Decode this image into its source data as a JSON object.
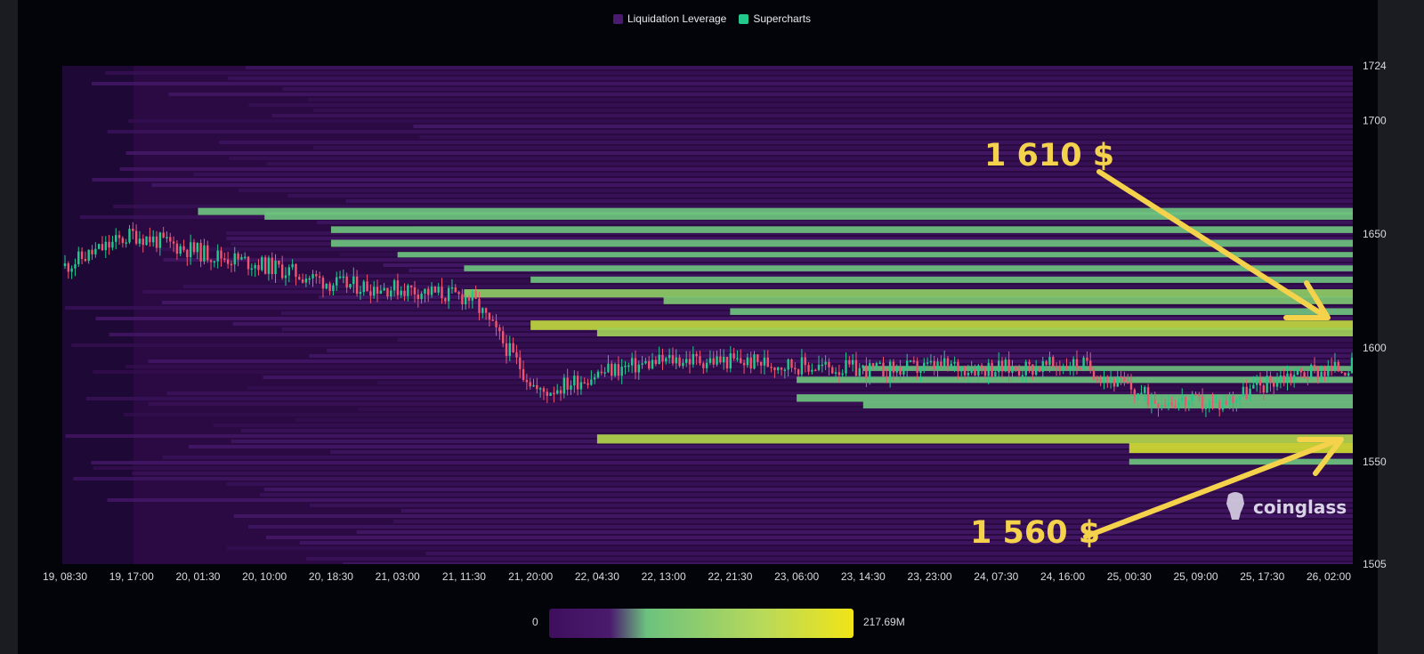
{
  "legend": [
    {
      "label": "Liquidation Leverage",
      "color": "#4a1a6e"
    },
    {
      "label": "Supercharts",
      "color": "#22c98b"
    }
  ],
  "colors": {
    "background": "#2b0a44",
    "scale_low": "#3f0f5e",
    "scale_mid": "#6cc27e",
    "scale_high": "#f1e417",
    "candle_up": "#22c98b",
    "candle_down": "#f0546f",
    "annotation": "#f5d24c"
  },
  "color_scale": {
    "min_label": "0",
    "max_label": "217.69M"
  },
  "annotations": [
    {
      "label": "1 610 $",
      "price": 1610
    },
    {
      "label": "1 560 $",
      "price": 1560
    }
  ],
  "watermark": "coinglass",
  "chart_data": {
    "type": "heatmap",
    "title": "",
    "xlabel": "",
    "ylabel": "",
    "ylim": [
      1505,
      1724
    ],
    "y_ticks": [
      1505,
      1550,
      1600,
      1650,
      1700,
      1724
    ],
    "x_ticks": [
      "19, 08:30",
      "19, 17:00",
      "20, 01:30",
      "20, 10:00",
      "20, 18:30",
      "21, 03:00",
      "21, 11:30",
      "21, 20:00",
      "22, 04:30",
      "22, 13:00",
      "22, 21:30",
      "23, 06:00",
      "23, 14:30",
      "23, 23:00",
      "24, 07:30",
      "24, 16:00",
      "25, 00:30",
      "25, 09:00",
      "25, 17:30",
      "26, 02:00"
    ],
    "liquidation_bands": [
      {
        "price": 1660,
        "start": "20, 01:30",
        "intensity": 0.55
      },
      {
        "price": 1658,
        "start": "20, 10:00",
        "intensity": 0.6
      },
      {
        "price": 1652,
        "start": "20, 18:30",
        "intensity": 0.5
      },
      {
        "price": 1646,
        "start": "20, 18:30",
        "intensity": 0.55
      },
      {
        "price": 1641,
        "start": "21, 03:00",
        "intensity": 0.35
      },
      {
        "price": 1635,
        "start": "21, 11:30",
        "intensity": 0.4
      },
      {
        "price": 1630,
        "start": "21, 20:00",
        "intensity": 0.45
      },
      {
        "price": 1624,
        "start": "21, 11:30",
        "intensity": 0.7
      },
      {
        "price": 1621,
        "start": "22, 13:00",
        "intensity": 0.65
      },
      {
        "price": 1616,
        "start": "22, 21:30",
        "intensity": 0.5
      },
      {
        "price": 1610,
        "start": "21, 20:00",
        "intensity": 0.85
      },
      {
        "price": 1607,
        "start": "22, 04:30",
        "intensity": 0.75
      },
      {
        "price": 1591,
        "start": "23, 14:30",
        "intensity": 0.3
      },
      {
        "price": 1586,
        "start": "23, 06:00",
        "intensity": 0.45
      },
      {
        "price": 1578,
        "start": "23, 06:00",
        "intensity": 0.6
      },
      {
        "price": 1575,
        "start": "23, 14:30",
        "intensity": 0.55
      },
      {
        "price": 1560,
        "start": "22, 04:30",
        "intensity": 0.8
      },
      {
        "price": 1556,
        "start": "25, 00:30",
        "intensity": 0.9
      },
      {
        "price": 1550,
        "start": "25, 00:30",
        "intensity": 0.4
      }
    ],
    "price_series": {
      "name": "",
      "x": [
        "19, 08:30",
        "19, 17:00",
        "20, 01:30",
        "20, 10:00",
        "20, 18:30",
        "21, 03:00",
        "21, 11:30",
        "21, 20:00",
        "22, 04:30",
        "22, 13:00",
        "22, 21:30",
        "23, 06:00",
        "23, 14:30",
        "23, 23:00",
        "24, 07:30",
        "24, 16:00",
        "25, 00:30",
        "25, 09:00",
        "25, 17:30",
        "26, 02:00"
      ],
      "values": [
        1636,
        1650,
        1642,
        1636,
        1628,
        1626,
        1622,
        1580,
        1590,
        1595,
        1594,
        1592,
        1590,
        1592,
        1591,
        1593,
        1578,
        1575,
        1588,
        1592
      ]
    }
  }
}
